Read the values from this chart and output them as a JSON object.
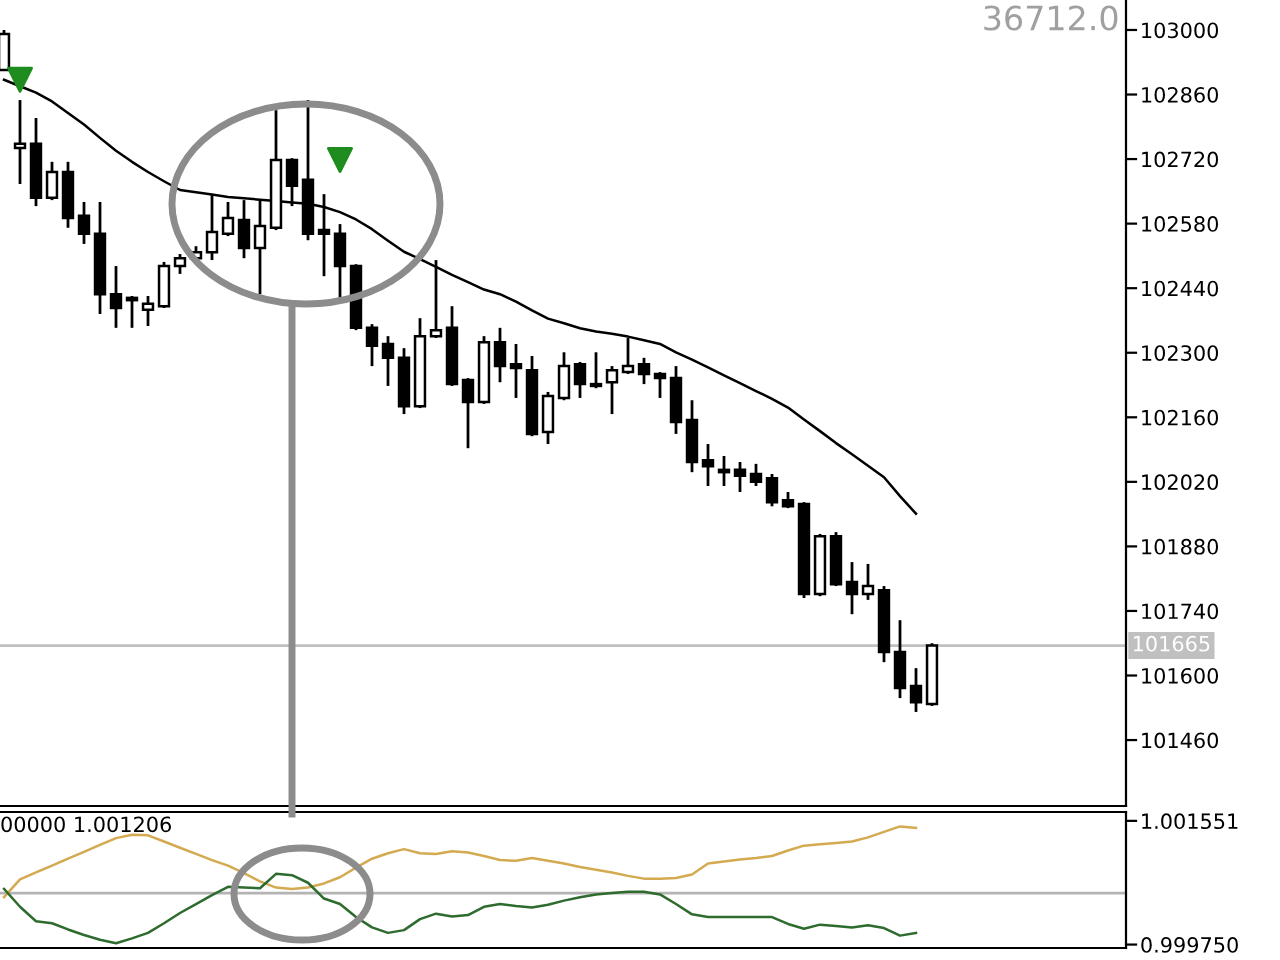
{
  "chart_data": [
    {
      "type": "candlestick",
      "categories": [
        null,
        null,
        null,
        null,
        null,
        null,
        null,
        null,
        null,
        null,
        null,
        null,
        null,
        null,
        null,
        null,
        null,
        null,
        null,
        null,
        null,
        null,
        null,
        null,
        null,
        null,
        null,
        null,
        null,
        null,
        null,
        null,
        null,
        null,
        null,
        null,
        null,
        null,
        null,
        null,
        null,
        null,
        null,
        null,
        null,
        null,
        null,
        null,
        null,
        null,
        null,
        null,
        null,
        null,
        null,
        null,
        null,
        null,
        null
      ],
      "series": [
        {
          "type": "candlestick",
          "color": "#000000",
          "ohlc": [
            [
              102913,
              103000,
              102913,
              102991
            ],
            [
              102744,
              102848,
              102666,
              102753
            ],
            [
              102753,
              102809,
              102618,
              102636
            ],
            [
              102636,
              102714,
              102631,
              102692
            ],
            [
              102692,
              102714,
              102571,
              102592
            ],
            [
              102597,
              102627,
              102536,
              102558
            ],
            [
              102558,
              102627,
              102384,
              102427
            ],
            [
              102427,
              102488,
              102354,
              102397
            ],
            [
              102419,
              102423,
              102354,
              102414
            ],
            [
              102393,
              102423,
              102358,
              102406
            ],
            [
              102401,
              102497,
              102397,
              102488
            ],
            [
              102488,
              102514,
              102471,
              102505
            ],
            [
              102505,
              102531,
              102492,
              102518
            ],
            [
              102518,
              102644,
              102501,
              102562
            ],
            [
              102558,
              102627,
              102553,
              102592
            ],
            [
              102588,
              102631,
              102505,
              102527
            ],
            [
              102527,
              102631,
              102427,
              102575
            ],
            [
              102571,
              102826,
              102566,
              102718
            ],
            [
              102718,
              102722,
              102618,
              102662
            ],
            [
              102675,
              102848,
              102544,
              102558
            ],
            [
              102566,
              102644,
              102466,
              102558
            ],
            [
              102558,
              102579,
              102419,
              102488
            ],
            [
              102488,
              102492,
              102349,
              102354
            ],
            [
              102354,
              102362,
              102271,
              102315
            ],
            [
              102319,
              102336,
              102228,
              102289
            ],
            [
              102289,
              102310,
              102167,
              102184
            ],
            [
              102184,
              102375,
              102180,
              102336
            ],
            [
              102336,
              102501,
              102332,
              102349
            ],
            [
              102354,
              102401,
              102228,
              102232
            ],
            [
              102241,
              102245,
              102093,
              102193
            ],
            [
              102193,
              102336,
              102189,
              102323
            ],
            [
              102323,
              102354,
              102236,
              102271
            ],
            [
              102275,
              102319,
              102202,
              102267
            ],
            [
              102262,
              102293,
              102119,
              102124
            ],
            [
              102128,
              102215,
              102102,
              102206
            ],
            [
              102202,
              102301,
              102197,
              102271
            ],
            [
              102275,
              102280,
              102202,
              102232
            ],
            [
              102232,
              102301,
              102223,
              102228
            ],
            [
              102236,
              102271,
              102167,
              102262
            ],
            [
              102258,
              102332,
              102254,
              102271
            ],
            [
              102275,
              102289,
              102232,
              102254
            ],
            [
              102254,
              102258,
              102202,
              102245
            ],
            [
              102245,
              102271,
              102124,
              102150
            ],
            [
              102154,
              102197,
              102041,
              102063
            ],
            [
              102067,
              102102,
              102011,
              102054
            ],
            [
              102046,
              102076,
              102011,
              102041
            ],
            [
              102046,
              102063,
              101998,
              102033
            ],
            [
              102037,
              102059,
              102011,
              102020
            ],
            [
              102028,
              102037,
              101967,
              101976
            ],
            [
              101980,
              101998,
              101963,
              101967
            ],
            [
              101972,
              101976,
              101768,
              101777
            ],
            [
              101777,
              101907,
              101772,
              101902
            ],
            [
              101902,
              101911,
              101794,
              101798
            ],
            [
              101803,
              101846,
              101733,
              101777
            ],
            [
              101777,
              101842,
              101764,
              101794
            ],
            [
              101785,
              101794,
              101629,
              101651
            ],
            [
              101651,
              101720,
              101551,
              101573
            ],
            [
              101577,
              101616,
              101521,
              101542
            ],
            [
              101538,
              101670,
              101534,
              101665
            ]
          ]
        },
        {
          "type": "line",
          "color": "#000000",
          "values": [
            102892,
            102878,
            102864,
            102845,
            102820,
            102795,
            102766,
            102738,
            102714,
            102692,
            102672,
            102653,
            102648,
            102643,
            102638,
            102635,
            102632,
            102629,
            102626,
            102623,
            102616,
            102605,
            102589,
            102568,
            102543,
            102519,
            102503,
            102486,
            102469,
            102453,
            102437,
            102427,
            102411,
            102392,
            102374,
            102364,
            102353,
            102346,
            102341,
            102335,
            102327,
            102319,
            102301,
            102285,
            102268,
            102251,
            102234,
            102217,
            102200,
            102181,
            102155,
            102130,
            102104,
            102080,
            102055,
            102030,
            101989,
            101951,
            null
          ]
        },
        {
          "type": "scatter",
          "color": "#1e8c1e",
          "marker": "triangle",
          "values": [
            null,
            102892,
            null,
            null,
            null,
            null,
            null,
            null,
            null,
            null,
            null,
            null,
            null,
            null,
            null,
            null,
            null,
            null,
            null,
            null,
            null,
            102718,
            null,
            null,
            null,
            null,
            null,
            null,
            null,
            null,
            null,
            null,
            null,
            null,
            null,
            null,
            null,
            null,
            null,
            null,
            null,
            null,
            null,
            null,
            null,
            null,
            null,
            null,
            null,
            null,
            null,
            null,
            null,
            null,
            null,
            null,
            null,
            null,
            null
          ]
        }
      ],
      "ylim": [
        101317,
        103065
      ],
      "yticks": [
        103000,
        102860,
        102720,
        102580,
        102440,
        102300,
        102160,
        102020,
        101880,
        101740,
        101600,
        101460
      ],
      "ref_lines": [
        {
          "axis": "y",
          "value": 101665,
          "label": "101665",
          "color": "#c0c0c0"
        }
      ],
      "annotations": [
        "36712.0"
      ],
      "tick_labels": "y",
      "grid": false,
      "legend": false
    },
    {
      "type": "line",
      "categories": [
        null,
        null,
        null,
        null,
        null,
        null,
        null,
        null,
        null,
        null,
        null,
        null,
        null,
        null,
        null,
        null,
        null,
        null,
        null,
        null,
        null,
        null,
        null,
        null,
        null,
        null,
        null,
        null,
        null,
        null,
        null,
        null,
        null,
        null,
        null,
        null,
        null,
        null,
        null,
        null,
        null,
        null,
        null,
        null,
        null,
        null,
        null,
        null,
        null,
        null,
        null,
        null,
        null,
        null,
        null,
        null,
        null,
        null,
        null
      ],
      "series": [
        {
          "color": "#d4aa50",
          "values": [
            1.00044,
            1.0007,
            1.0008,
            1.0009,
            1.001,
            1.0011,
            1.0012,
            1.0013,
            1.00135,
            1.00134,
            1.00125,
            1.00116,
            1.00107,
            1.00098,
            1.0009,
            1.00079,
            1.00067,
            1.00058,
            1.00056,
            1.00058,
            1.00064,
            1.00073,
            1.00087,
            1.001,
            1.00108,
            1.00114,
            1.00108,
            1.00107,
            1.00111,
            1.00109,
            1.00104,
            1.00098,
            1.00097,
            1.00101,
            1.00097,
            1.00093,
            1.00088,
            1.00084,
            1.0008,
            1.00075,
            1.00071,
            1.00071,
            1.00072,
            1.00077,
            1.00093,
            1.00096,
            1.00099,
            1.00101,
            1.00104,
            1.00112,
            1.00119,
            1.00121,
            1.00123,
            1.00125,
            1.00131,
            1.00139,
            1.00147,
            1.00145,
            null
          ]
        },
        {
          "color": "#2e6b2e",
          "values": [
            1.00056,
            1.0003,
            1.00009,
            1.00006,
            0.99997,
            0.99989,
            0.99982,
            0.99977,
            0.99984,
            0.99992,
            1.00006,
            1.00021,
            1.00034,
            1.00047,
            1.00059,
            1.00058,
            1.00057,
            1.00078,
            1.00076,
            1.00065,
            1.00042,
            1.00034,
            1.00015,
            1.0,
            0.99992,
            0.99996,
            1.00012,
            1.0002,
            1.00016,
            1.00018,
            1.0003,
            1.00034,
            1.00031,
            1.00029,
            1.00033,
            1.00039,
            1.00044,
            1.00048,
            1.0005,
            1.00052,
            1.00052,
            1.00048,
            1.00034,
            1.00019,
            1.00015,
            1.00015,
            1.00015,
            1.00015,
            1.00015,
            1.00005,
            0.99998,
            1.00004,
            1.00002,
            1.0,
            1.00003,
            0.99999,
            0.99988,
            0.99992,
            null
          ]
        }
      ],
      "ylim": [
        0.9997,
        1.00168
      ],
      "yticks": [
        1.001551,
        {
          "value": 0.99975,
          "label": "0.999750"
        }
      ],
      "ref_lines": [
        {
          "axis": "y",
          "value": 1.0005,
          "color": "#b4b4b4"
        }
      ],
      "annotations": [
        "00000 1.001206"
      ],
      "tick_labels": "y",
      "grid": false,
      "legend": false
    }
  ]
}
